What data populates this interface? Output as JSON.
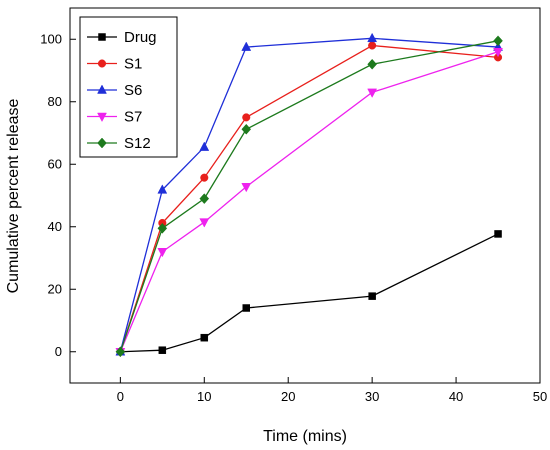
{
  "chart_data": {
    "type": "line",
    "xlabel": "Time (mins)",
    "ylabel": "Cumulative percent release",
    "xlim": [
      -6,
      50
    ],
    "ylim": [
      -10,
      110
    ],
    "xticks": [
      0,
      10,
      20,
      30,
      40,
      50
    ],
    "yticks": [
      0,
      20,
      40,
      60,
      80,
      100
    ],
    "x": [
      0,
      5,
      10,
      15,
      30,
      45
    ],
    "legend_position": "top-left",
    "series": [
      {
        "name": "Drug",
        "color": "#000000",
        "marker": "square",
        "values": [
          0,
          0.5,
          4.5,
          14,
          17.8,
          37.7
        ]
      },
      {
        "name": "S1",
        "color": "#e8201c",
        "marker": "circle",
        "values": [
          0,
          41.2,
          55.7,
          75,
          98,
          94.2
        ]
      },
      {
        "name": "S6",
        "color": "#1f2fd8",
        "marker": "triangle-up",
        "values": [
          0,
          51.8,
          65.5,
          97.5,
          100.3,
          97.5
        ]
      },
      {
        "name": "S7",
        "color": "#ee22ee",
        "marker": "triangle-down",
        "values": [
          0,
          32,
          41.5,
          52.8,
          83,
          96
        ]
      },
      {
        "name": "S12",
        "color": "#1d7a1d",
        "marker": "diamond",
        "values": [
          0,
          39.5,
          49,
          71.2,
          92,
          99.5
        ]
      }
    ]
  }
}
